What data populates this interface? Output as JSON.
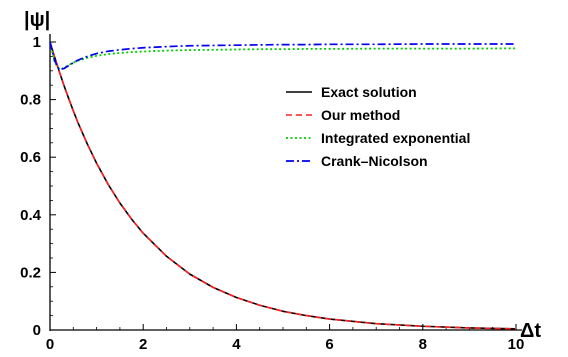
{
  "chart_data": {
    "type": "line",
    "title": "",
    "xlabel": "Δt",
    "ylabel": "|ψ|",
    "xlim": [
      0,
      10
    ],
    "ylim": [
      0,
      1
    ],
    "x_ticks": [
      0,
      2,
      4,
      6,
      8,
      10
    ],
    "x_tick_labels": [
      "0",
      "2",
      "4",
      "6",
      "8",
      "10"
    ],
    "y_ticks": [
      0,
      0.2,
      0.4,
      0.6,
      0.8,
      1
    ],
    "y_tick_labels": [
      "0",
      "0.2",
      "0.4",
      "0.6",
      "0.8",
      "1"
    ],
    "grid": false,
    "legend_position": "right",
    "x": [
      0,
      0.1,
      0.2,
      0.3,
      0.4,
      0.5,
      0.6,
      0.8,
      1,
      1.25,
      1.5,
      1.75,
      2,
      2.5,
      3,
      3.5,
      4,
      4.5,
      5,
      5.5,
      6,
      7,
      8,
      9,
      10
    ],
    "series": [
      {
        "name": "Exact solution",
        "color": "#000000",
        "dash": "solid",
        "values": [
          1,
          0.947,
          0.897,
          0.849,
          0.804,
          0.761,
          0.72,
          0.646,
          0.579,
          0.505,
          0.441,
          0.385,
          0.336,
          0.256,
          0.194,
          0.148,
          0.113,
          0.086,
          0.065,
          0.05,
          0.038,
          0.022,
          0.013,
          0.007,
          0.004
        ]
      },
      {
        "name": "Our method",
        "color": "#ff2020",
        "dash": "dashed",
        "values": [
          1,
          0.947,
          0.897,
          0.849,
          0.804,
          0.761,
          0.72,
          0.646,
          0.579,
          0.505,
          0.441,
          0.385,
          0.336,
          0.256,
          0.194,
          0.148,
          0.113,
          0.086,
          0.065,
          0.05,
          0.038,
          0.022,
          0.013,
          0.007,
          0.004
        ]
      },
      {
        "name": "Integrated exponential",
        "color": "#00cc00",
        "dash": "dotted",
        "values": [
          1,
          0.93,
          0.905,
          0.91,
          0.92,
          0.928,
          0.935,
          0.945,
          0.952,
          0.958,
          0.962,
          0.965,
          0.967,
          0.97,
          0.972,
          0.973,
          0.974,
          0.975,
          0.975,
          0.976,
          0.976,
          0.977,
          0.977,
          0.977,
          0.978
        ]
      },
      {
        "name": "Crank–Nicolson",
        "color": "#0000ee",
        "dash": "dashdot",
        "values": [
          1,
          0.935,
          0.903,
          0.908,
          0.918,
          0.928,
          0.937,
          0.95,
          0.96,
          0.968,
          0.973,
          0.977,
          0.98,
          0.984,
          0.987,
          0.988,
          0.989,
          0.99,
          0.991,
          0.991,
          0.992,
          0.992,
          0.993,
          0.993,
          0.993
        ]
      }
    ]
  }
}
